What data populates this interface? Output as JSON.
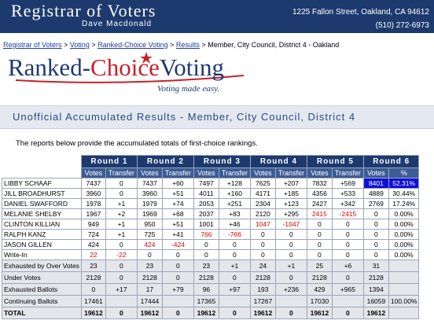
{
  "header": {
    "title": "Registrar of Voters",
    "subtitle": "Dave Macdonald",
    "address": "1225 Fallon Street, Oakland, CA 94612",
    "phone": "(510) 272-6973"
  },
  "breadcrumbs": {
    "links": [
      "Registrar of Voters",
      "Voting",
      "Ranked-Choice Voting",
      "Results"
    ],
    "current": "Member, City Council, District 4 - Oakland"
  },
  "logo": {
    "part1": "Ranked-",
    "part2": "Choice",
    "part3": "Voting",
    "tagline": "Voting made easy."
  },
  "page_title": "Unofficial Accumulated Results - Member, City Council, District 4",
  "intro": "The reports below provide the accumulated totals of first-choice rankings.",
  "table": {
    "rounds": [
      "Round 1",
      "Round 2",
      "Round 3",
      "Round 4",
      "Round 5",
      "Round 6"
    ],
    "subheaders": [
      "Votes",
      "Transfer",
      "Votes",
      "Transfer",
      "Votes",
      "Transfer",
      "Votes",
      "Transfer",
      "Votes",
      "Transfer",
      "Votes",
      "%"
    ],
    "rows": [
      {
        "name": "LIBBY SCHAAF",
        "cells": [
          "7437",
          "0",
          "7437",
          "+60",
          "7497",
          "+128",
          "7625",
          "+207",
          "7832",
          "+569",
          "8401",
          "52.31%"
        ],
        "winner": [
          10,
          11
        ]
      },
      {
        "name": "JILL BROADHURST",
        "cells": [
          "3960",
          "0",
          "3960",
          "+51",
          "4011",
          "+160",
          "4171",
          "+185",
          "4356",
          "+533",
          "4889",
          "30.44%"
        ]
      },
      {
        "name": "DANIEL SWAFFORD",
        "cells": [
          "1978",
          "+1",
          "1979",
          "+74",
          "2053",
          "+251",
          "2304",
          "+123",
          "2427",
          "+342",
          "2769",
          "17.24%"
        ]
      },
      {
        "name": "MELANIE SHELBY",
        "cells": [
          "1967",
          "+2",
          "1969",
          "+68",
          "2037",
          "+83",
          "2120",
          "+295",
          "2415",
          "-2415",
          "0",
          "0.00%"
        ],
        "eliminated": [
          8,
          9
        ]
      },
      {
        "name": "CLINTON KILLIAN",
        "cells": [
          "949",
          "+1",
          "950",
          "+51",
          "1001",
          "+46",
          "1047",
          "-1047",
          "0",
          "0",
          "0",
          "0.00%"
        ],
        "eliminated": [
          6,
          7
        ]
      },
      {
        "name": "RALPH KANZ",
        "cells": [
          "724",
          "+1",
          "725",
          "+41",
          "766",
          "-766",
          "0",
          "0",
          "0",
          "0",
          "0",
          "0.00%"
        ],
        "eliminated": [
          4,
          5
        ]
      },
      {
        "name": "JASON GILLEN",
        "cells": [
          "424",
          "0",
          "424",
          "-424",
          "0",
          "0",
          "0",
          "0",
          "0",
          "0",
          "0",
          "0.00%"
        ],
        "eliminated": [
          2,
          3
        ]
      },
      {
        "name": "Write-In",
        "cells": [
          "22",
          "-22",
          "0",
          "0",
          "0",
          "0",
          "0",
          "0",
          "0",
          "0",
          "0",
          "0.00%"
        ],
        "eliminated": [
          0,
          1
        ]
      },
      {
        "name": "Exhausted by Over Votes",
        "cells": [
          "23",
          "0",
          "23",
          "0",
          "23",
          "+1",
          "24",
          "+1",
          "25",
          "+6",
          "31",
          null
        ],
        "summary": true
      },
      {
        "name": "Under Votes",
        "cells": [
          "2128",
          "0",
          "2128",
          "0",
          "2128",
          "0",
          "2128",
          "0",
          "2128",
          "0",
          "2128",
          null
        ],
        "summary": true
      },
      {
        "name": "Exhausted Ballots",
        "cells": [
          "0",
          "+17",
          "17",
          "+79",
          "96",
          "+97",
          "193",
          "+236",
          "429",
          "+965",
          "1394",
          null
        ],
        "summary": true
      },
      {
        "name": "Continuing Ballots",
        "cells": [
          "17461",
          null,
          "17444",
          null,
          "17365",
          null,
          "17267",
          null,
          "17030",
          null,
          "16059",
          "100.00%"
        ],
        "summary": true
      },
      {
        "name": "TOTAL",
        "cells": [
          "19612",
          "0",
          "19612",
          "0",
          "19612",
          "0",
          "19612",
          "0",
          "19612",
          "0",
          "19612",
          null
        ],
        "summary": true,
        "total": true
      }
    ]
  }
}
